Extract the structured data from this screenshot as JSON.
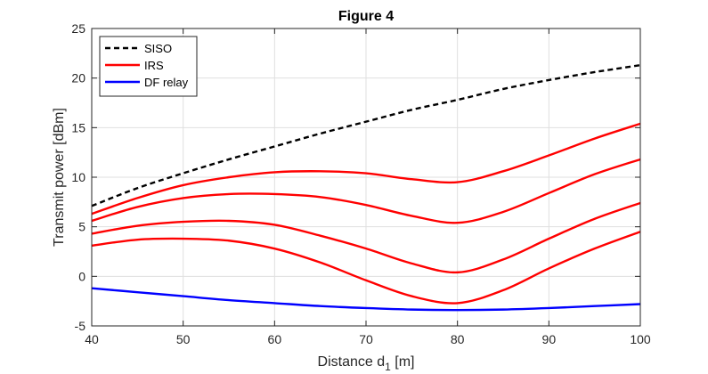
{
  "chart_data": {
    "type": "line",
    "title": "Figure 4",
    "xlabel": "Distance d",
    "xlabel_subscript": "1",
    "xlabel_unit": " [m]",
    "ylabel": "Transmit power [dBm]",
    "xlim": [
      40,
      100
    ],
    "ylim": [
      -5,
      25
    ],
    "xticks": [
      40,
      50,
      60,
      70,
      80,
      90,
      100
    ],
    "yticks": [
      -5,
      0,
      5,
      10,
      15,
      20,
      25
    ],
    "grid": true,
    "legend_position": "top-left",
    "x": [
      40,
      45,
      50,
      55,
      60,
      65,
      70,
      75,
      80,
      85,
      90,
      95,
      100
    ],
    "series": [
      {
        "name": "SISO",
        "color": "#000000",
        "dash": "dashed",
        "in_legend": true,
        "values": [
          7.1,
          8.9,
          10.4,
          11.8,
          13.1,
          14.4,
          15.6,
          16.8,
          17.8,
          18.9,
          19.8,
          20.6,
          21.3
        ]
      },
      {
        "name": "IRS",
        "color": "#ff0000",
        "dash": "solid",
        "in_legend": true,
        "values": [
          6.3,
          7.9,
          9.2,
          10.0,
          10.5,
          10.6,
          10.4,
          9.8,
          9.5,
          10.6,
          12.2,
          13.9,
          15.4
        ]
      },
      {
        "name": "IRS",
        "color": "#ff0000",
        "dash": "solid",
        "in_legend": false,
        "values": [
          5.6,
          7.0,
          7.9,
          8.3,
          8.3,
          8.0,
          7.2,
          6.1,
          5.4,
          6.5,
          8.4,
          10.3,
          11.8
        ]
      },
      {
        "name": "IRS",
        "color": "#ff0000",
        "dash": "solid",
        "in_legend": false,
        "values": [
          4.3,
          5.1,
          5.5,
          5.6,
          5.2,
          4.1,
          2.8,
          1.3,
          0.4,
          1.7,
          3.8,
          5.8,
          7.4
        ]
      },
      {
        "name": "IRS",
        "color": "#ff0000",
        "dash": "solid",
        "in_legend": false,
        "values": [
          3.1,
          3.7,
          3.8,
          3.6,
          2.8,
          1.4,
          -0.4,
          -2.0,
          -2.7,
          -1.4,
          0.8,
          2.8,
          4.5
        ]
      },
      {
        "name": "DF relay",
        "color": "#0000ff",
        "dash": "solid",
        "in_legend": true,
        "values": [
          -1.2,
          -1.6,
          -2.0,
          -2.4,
          -2.7,
          -3.0,
          -3.2,
          -3.35,
          -3.4,
          -3.35,
          -3.2,
          -3.0,
          -2.8
        ]
      }
    ]
  }
}
